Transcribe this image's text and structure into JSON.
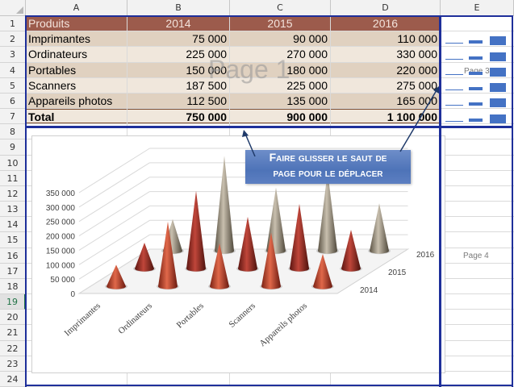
{
  "columns": [
    "A",
    "B",
    "C",
    "D",
    "E"
  ],
  "rows": [
    "1",
    "2",
    "3",
    "4",
    "5",
    "6",
    "7",
    "8",
    "9",
    "10",
    "11",
    "12",
    "13",
    "14",
    "15",
    "16",
    "17",
    "18",
    "19",
    "20",
    "21",
    "22",
    "23",
    "24"
  ],
  "active_row": "19",
  "table": {
    "header": [
      "Produits",
      "2014",
      "2015",
      "2016"
    ],
    "rows": [
      [
        "Imprimantes",
        "75 000",
        "90 000",
        "110 000"
      ],
      [
        "Ordinateurs",
        "225 000",
        "270 000",
        "330 000"
      ],
      [
        "Portables",
        "150 000",
        "180 000",
        "220 000"
      ],
      [
        "Scanners",
        "187 500",
        "225 000",
        "275 000"
      ],
      [
        "Appareils photos",
        "112 500",
        "135 000",
        "165 000"
      ]
    ],
    "total": [
      "Total",
      "750 000",
      "900 000",
      "1 100 000"
    ]
  },
  "watermarks": {
    "page1": "Page 1",
    "page3": "Page 3",
    "page4": "Page 4"
  },
  "callout": {
    "line1": "Faire glisser le saut de",
    "line2": "page pour le déplacer"
  },
  "colors": {
    "header_fill": "#9c5b4c",
    "band_dark": "#e0d1c0",
    "band_light": "#f0e7dc",
    "page_break": "#1e2f9a",
    "accent": "#217346",
    "callout": "#4e73b8"
  },
  "chart_data": {
    "type": "bar",
    "subtype": "3d-cone",
    "categories": [
      "Imprimantes",
      "Ordinateurs",
      "Portables",
      "Scanners",
      "Appareils photos"
    ],
    "series": [
      {
        "name": "2014",
        "values": [
          75000,
          225000,
          150000,
          187500,
          112500
        ],
        "color": "#b8432a"
      },
      {
        "name": "2015",
        "values": [
          90000,
          270000,
          180000,
          225000,
          135000
        ],
        "color": "#8e2a22"
      },
      {
        "name": "2016",
        "values": [
          110000,
          330000,
          220000,
          275000,
          165000
        ],
        "color": "#8a8070"
      }
    ],
    "yticks": [
      "0",
      "50 000",
      "100 000",
      "150 000",
      "200 000",
      "250 000",
      "300 000",
      "350 000"
    ],
    "ylim": [
      0,
      350000
    ],
    "grid": true,
    "title": "",
    "xlabel": "",
    "ylabel": ""
  }
}
